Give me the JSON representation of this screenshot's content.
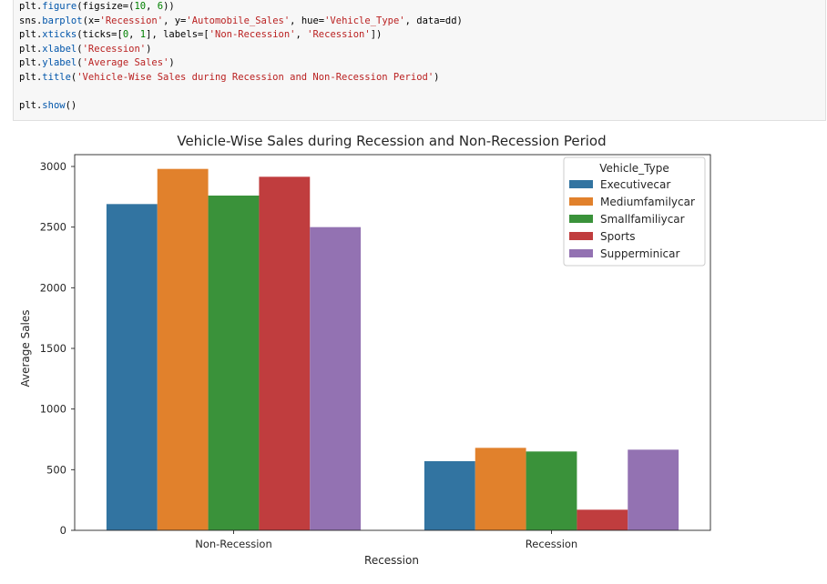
{
  "code": {
    "lines": [
      [
        {
          "t": "plt.",
          "c": "plain"
        },
        {
          "t": "figure",
          "c": "attr"
        },
        {
          "t": "(figsize=(",
          "c": "plain"
        },
        {
          "t": "10",
          "c": "num"
        },
        {
          "t": ", ",
          "c": "plain"
        },
        {
          "t": "6",
          "c": "num"
        },
        {
          "t": "))",
          "c": "plain"
        }
      ],
      [
        {
          "t": "sns.",
          "c": "plain"
        },
        {
          "t": "barplot",
          "c": "attr"
        },
        {
          "t": "(x=",
          "c": "plain"
        },
        {
          "t": "'Recession'",
          "c": "str"
        },
        {
          "t": ", y=",
          "c": "plain"
        },
        {
          "t": "'Automobile_Sales'",
          "c": "str"
        },
        {
          "t": ", hue=",
          "c": "plain"
        },
        {
          "t": "'Vehicle_Type'",
          "c": "str"
        },
        {
          "t": ", data=dd)",
          "c": "plain"
        }
      ],
      [
        {
          "t": "plt.",
          "c": "plain"
        },
        {
          "t": "xticks",
          "c": "attr"
        },
        {
          "t": "(ticks=[",
          "c": "plain"
        },
        {
          "t": "0",
          "c": "num"
        },
        {
          "t": ", ",
          "c": "plain"
        },
        {
          "t": "1",
          "c": "num"
        },
        {
          "t": "], labels=[",
          "c": "plain"
        },
        {
          "t": "'Non-Recession'",
          "c": "str"
        },
        {
          "t": ", ",
          "c": "plain"
        },
        {
          "t": "'Recession'",
          "c": "str"
        },
        {
          "t": "])",
          "c": "plain"
        }
      ],
      [
        {
          "t": "plt.",
          "c": "plain"
        },
        {
          "t": "xlabel",
          "c": "attr"
        },
        {
          "t": "(",
          "c": "plain"
        },
        {
          "t": "'Recession'",
          "c": "str"
        },
        {
          "t": ")",
          "c": "plain"
        }
      ],
      [
        {
          "t": "plt.",
          "c": "plain"
        },
        {
          "t": "ylabel",
          "c": "attr"
        },
        {
          "t": "(",
          "c": "plain"
        },
        {
          "t": "'Average Sales'",
          "c": "str"
        },
        {
          "t": ")",
          "c": "plain"
        }
      ],
      [
        {
          "t": "plt.",
          "c": "plain"
        },
        {
          "t": "title",
          "c": "attr"
        },
        {
          "t": "(",
          "c": "plain"
        },
        {
          "t": "'Vehicle-Wise Sales during Recession and Non-Recession Period'",
          "c": "str"
        },
        {
          "t": ")",
          "c": "plain"
        }
      ],
      [],
      [
        {
          "t": "plt.",
          "c": "plain"
        },
        {
          "t": "show",
          "c": "attr"
        },
        {
          "t": "()",
          "c": "plain"
        }
      ]
    ]
  },
  "chart_data": {
    "type": "bar",
    "title": "Vehicle-Wise Sales during Recession and Non-Recession Period",
    "xlabel": "Recession",
    "ylabel": "Average Sales",
    "categories": [
      "Non-Recession",
      "Recession"
    ],
    "legend_title": "Vehicle_Type",
    "legend_position": "top-right",
    "grid": false,
    "ylim": [
      0,
      3000
    ],
    "yticks": [
      0,
      500,
      1000,
      1500,
      2000,
      2500,
      3000
    ],
    "series": [
      {
        "name": "Executivecar",
        "color": "#3274a1",
        "values": [
          2690,
          570
        ]
      },
      {
        "name": "Mediumfamilycar",
        "color": "#e1812c",
        "values": [
          2980,
          680
        ]
      },
      {
        "name": "Smallfamiliycar",
        "color": "#3a923a",
        "values": [
          2760,
          650
        ]
      },
      {
        "name": "Sports",
        "color": "#c03d3e",
        "values": [
          2915,
          170
        ]
      },
      {
        "name": "Supperminicar",
        "color": "#9372b2",
        "values": [
          2500,
          665
        ]
      }
    ]
  }
}
